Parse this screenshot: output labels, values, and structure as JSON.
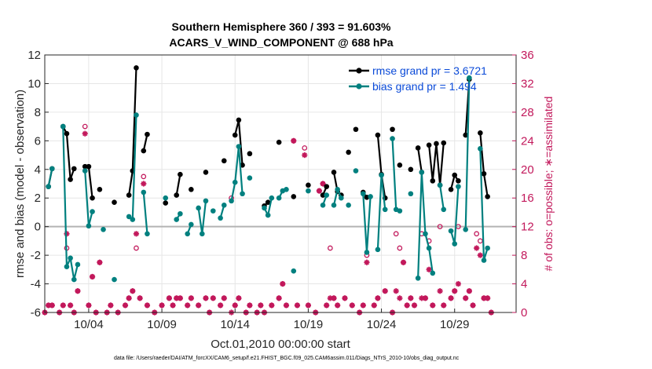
{
  "colors": {
    "rmse": "#000000",
    "bias": "#00807f",
    "obs": "#c2185b",
    "zero_line": "#b3b3b3"
  },
  "chart_data": {
    "type": "line",
    "title": [
      "Southern Hemisphere 360 / 393 = 91.603%",
      "ACARS_V_WIND_COMPONENT @ 688 hPa"
    ],
    "xlabel": "Oct.01,2010 00:00:00 start",
    "ylabel": "rmse and bias (model - observation)",
    "y2label": "# of obs: o=possible; ∗=assimilated",
    "xlim": [
      1,
      33.2
    ],
    "ylim": [
      -6,
      12
    ],
    "y2lim": [
      0,
      36
    ],
    "xticks": [
      {
        "value": 4,
        "label": "10/04"
      },
      {
        "value": 9,
        "label": "10/09"
      },
      {
        "value": 14,
        "label": "10/14"
      },
      {
        "value": 19,
        "label": "10/19"
      },
      {
        "value": 24,
        "label": "10/24"
      },
      {
        "value": 29,
        "label": "10/29"
      }
    ],
    "yticks": [
      -6,
      -4,
      -2,
      0,
      2,
      4,
      6,
      8,
      10,
      12
    ],
    "y2ticks": [
      0,
      4,
      8,
      12,
      16,
      20,
      24,
      28,
      32,
      36
    ],
    "grid": true,
    "legend_position": "top-right",
    "legend": [
      "rmse grand pr = 3.6721",
      "bias grand pr = 1.494"
    ],
    "footer": "data file: /Users/raeder/DAI/ATM_forcXX/CAM6_setup/f.e21.FHIST_BGC.f09_025.CAM6assim.011/Diags_NTrS_2010-10/obs_diag_output.nc",
    "series": [
      {
        "name": "rmse grand pr = 3.6721",
        "points": [
          [
            1.25,
            2.8
          ],
          [
            1.5,
            4.05
          ],
          [
            2.25,
            7.0
          ],
          [
            2.5,
            6.5
          ],
          [
            2.75,
            3.3
          ],
          [
            3.0,
            4.05
          ],
          [
            3.75,
            4.2
          ],
          [
            4.0,
            4.2
          ],
          [
            4.25,
            2.0
          ],
          [
            4.75,
            2.6
          ],
          [
            5.75,
            1.7
          ],
          [
            6.75,
            2.2
          ],
          [
            7.0,
            3.9
          ],
          [
            7.25,
            11.1
          ],
          [
            7.75,
            5.3
          ],
          [
            8.0,
            6.45
          ],
          [
            9.25,
            1.65
          ],
          [
            10.0,
            2.2
          ],
          [
            10.25,
            3.65
          ],
          [
            11.0,
            2.6
          ],
          [
            12.0,
            3.8
          ],
          [
            13.25,
            4.6
          ],
          [
            14.0,
            6.4
          ],
          [
            14.25,
            7.45
          ],
          [
            14.5,
            4.3
          ],
          [
            15.0,
            5.1
          ],
          [
            16.0,
            1.45
          ],
          [
            16.25,
            1.7
          ],
          [
            17.0,
            5.9
          ],
          [
            18.0,
            2.1
          ],
          [
            19.0,
            2.9
          ],
          [
            20.0,
            2.2
          ],
          [
            20.25,
            2.8
          ],
          [
            20.75,
            3.8
          ],
          [
            21.0,
            2.45
          ],
          [
            21.25,
            2.2
          ],
          [
            21.75,
            5.2
          ],
          [
            22.25,
            6.8
          ],
          [
            22.75,
            2.4
          ],
          [
            23.0,
            2.05
          ],
          [
            23.75,
            6.4
          ],
          [
            24.0,
            3.65
          ],
          [
            24.25,
            2.0
          ],
          [
            24.75,
            6.8
          ],
          [
            25.25,
            4.3
          ],
          [
            26.0,
            4.0
          ],
          [
            26.5,
            5.5
          ],
          [
            26.75,
            3.8
          ],
          [
            27.25,
            5.7
          ],
          [
            27.5,
            3.2
          ],
          [
            27.75,
            5.8
          ],
          [
            28.0,
            2.9
          ],
          [
            28.25,
            5.85
          ],
          [
            28.75,
            2.6
          ],
          [
            29.0,
            3.6
          ],
          [
            29.25,
            3.2
          ],
          [
            29.75,
            6.4
          ],
          [
            30.0,
            10.3
          ],
          [
            30.75,
            6.55
          ],
          [
            31.0,
            3.7
          ],
          [
            31.25,
            2.1
          ]
        ]
      },
      {
        "name": "bias grand pr = 1.494",
        "points": [
          [
            1.25,
            2.8
          ],
          [
            1.5,
            4.05
          ],
          [
            2.25,
            7.0
          ],
          [
            2.5,
            -2.8
          ],
          [
            2.75,
            -2.2
          ],
          [
            3.0,
            -3.7
          ],
          [
            3.25,
            -2.65
          ],
          [
            3.75,
            3.9
          ],
          [
            4.0,
            0.05
          ],
          [
            4.25,
            1.05
          ],
          [
            5.0,
            -0.2
          ],
          [
            5.75,
            -3.7
          ],
          [
            6.75,
            0.7
          ],
          [
            7.0,
            0.5
          ],
          [
            7.25,
            7.8
          ],
          [
            7.75,
            2.4
          ],
          [
            8.0,
            -0.5
          ],
          [
            9.25,
            2.0
          ],
          [
            10.0,
            0.5
          ],
          [
            10.25,
            0.9
          ],
          [
            10.75,
            -0.5
          ],
          [
            11.0,
            0.15
          ],
          [
            11.5,
            1.3
          ],
          [
            11.75,
            -0.5
          ],
          [
            12.0,
            1.8
          ],
          [
            12.5,
            1.1
          ],
          [
            13.0,
            0.6
          ],
          [
            13.25,
            1.5
          ],
          [
            13.75,
            1.8
          ],
          [
            14.0,
            3.1
          ],
          [
            14.25,
            5.6
          ],
          [
            14.5,
            2.3
          ],
          [
            15.0,
            3.4
          ],
          [
            16.0,
            1.3
          ],
          [
            16.25,
            0.8
          ],
          [
            16.5,
            2.0
          ],
          [
            17.0,
            2.0
          ],
          [
            17.25,
            2.5
          ],
          [
            17.5,
            2.6
          ],
          [
            18.0,
            -3.1
          ],
          [
            19.0,
            2.5
          ],
          [
            20.0,
            1.5
          ],
          [
            20.25,
            2.2
          ],
          [
            20.75,
            1.5
          ],
          [
            21.0,
            2.6
          ],
          [
            21.25,
            2.0
          ],
          [
            21.75,
            1.5
          ],
          [
            22.25,
            3.9
          ],
          [
            22.75,
            2.3
          ],
          [
            23.0,
            -1.8
          ],
          [
            23.25,
            2.1
          ],
          [
            23.75,
            -1.6
          ],
          [
            24.0,
            3.6
          ],
          [
            24.25,
            1.2
          ],
          [
            24.75,
            6.15
          ],
          [
            25.0,
            1.2
          ],
          [
            25.25,
            1.1
          ],
          [
            26.0,
            2.3
          ],
          [
            26.5,
            -3.6
          ],
          [
            26.75,
            3.8
          ],
          [
            27.0,
            -0.5
          ],
          [
            27.25,
            -1.5
          ],
          [
            27.5,
            -3.25
          ],
          [
            28.0,
            2.9
          ],
          [
            28.25,
            1.2
          ],
          [
            28.75,
            -0.3
          ],
          [
            29.0,
            -1.2
          ],
          [
            29.25,
            2.8
          ],
          [
            29.75,
            -0.2
          ],
          [
            30.0,
            10.4
          ],
          [
            30.75,
            5.45
          ],
          [
            31.0,
            -2.35
          ],
          [
            31.25,
            -1.5
          ]
        ]
      }
    ],
    "obs_possible": [
      [
        1,
        0
      ],
      [
        1.25,
        1
      ],
      [
        1.5,
        1
      ],
      [
        2,
        0
      ],
      [
        2.25,
        1
      ],
      [
        2.5,
        9
      ],
      [
        2.75,
        1
      ],
      [
        3,
        0
      ],
      [
        3.25,
        3
      ],
      [
        3.75,
        26
      ],
      [
        4,
        1
      ],
      [
        4.25,
        5
      ],
      [
        4.5,
        0
      ],
      [
        4.75,
        7
      ],
      [
        5.25,
        0
      ],
      [
        5.5,
        1
      ],
      [
        6,
        0
      ],
      [
        6.5,
        1
      ],
      [
        6.75,
        2
      ],
      [
        7,
        3
      ],
      [
        7.25,
        9
      ],
      [
        7.5,
        2
      ],
      [
        7.75,
        19
      ],
      [
        8,
        1
      ],
      [
        8.5,
        0
      ],
      [
        9,
        1
      ],
      [
        9.5,
        2
      ],
      [
        9.75,
        1
      ],
      [
        10,
        2
      ],
      [
        10.25,
        2
      ],
      [
        10.75,
        1
      ],
      [
        11,
        2
      ],
      [
        11.5,
        1
      ],
      [
        12,
        2
      ],
      [
        12.25,
        0
      ],
      [
        12.5,
        2
      ],
      [
        13,
        1
      ],
      [
        13.25,
        2
      ],
      [
        13.75,
        16
      ],
      [
        14,
        1
      ],
      [
        14.25,
        2
      ],
      [
        14.75,
        0
      ],
      [
        15,
        1
      ],
      [
        15.5,
        0
      ],
      [
        15.75,
        1
      ],
      [
        16,
        0
      ],
      [
        16.5,
        1
      ],
      [
        17,
        2
      ],
      [
        17.25,
        4
      ],
      [
        17.5,
        1
      ],
      [
        18,
        24
      ],
      [
        18.25,
        1
      ],
      [
        18.75,
        23
      ],
      [
        19,
        1
      ],
      [
        19.5,
        0
      ],
      [
        19.75,
        17
      ],
      [
        20,
        18
      ],
      [
        20.25,
        1
      ],
      [
        20.5,
        9
      ],
      [
        20.75,
        2
      ],
      [
        21,
        1
      ],
      [
        21.5,
        2
      ],
      [
        22,
        1
      ],
      [
        22.5,
        0
      ],
      [
        22.75,
        1
      ],
      [
        23,
        8
      ],
      [
        23.5,
        1
      ],
      [
        23.75,
        2
      ],
      [
        24.25,
        3
      ],
      [
        24.75,
        0
      ],
      [
        25,
        11
      ],
      [
        25.25,
        9
      ],
      [
        25.5,
        7
      ],
      [
        25.75,
        1
      ],
      [
        26,
        2
      ],
      [
        26.25,
        1
      ],
      [
        26.75,
        11
      ],
      [
        27,
        2
      ],
      [
        27.25,
        10
      ],
      [
        27.5,
        1
      ],
      [
        28,
        12
      ],
      [
        28.25,
        1
      ],
      [
        28.75,
        2
      ],
      [
        29,
        3
      ],
      [
        29.25,
        12
      ],
      [
        29.75,
        2
      ],
      [
        30,
        3
      ],
      [
        30.25,
        1
      ],
      [
        30.5,
        11
      ],
      [
        30.75,
        10
      ],
      [
        31,
        2
      ],
      [
        31.25,
        2
      ],
      [
        31.5,
        0
      ]
    ],
    "obs_assimilated": [
      [
        1,
        0
      ],
      [
        1.25,
        1
      ],
      [
        1.5,
        1
      ],
      [
        2,
        0
      ],
      [
        2.25,
        1
      ],
      [
        2.5,
        11
      ],
      [
        2.75,
        1
      ],
      [
        3,
        0
      ],
      [
        3.25,
        3
      ],
      [
        3.75,
        25
      ],
      [
        4,
        1
      ],
      [
        4.25,
        5
      ],
      [
        4.5,
        0
      ],
      [
        4.75,
        7
      ],
      [
        5.25,
        0
      ],
      [
        5.5,
        1
      ],
      [
        6,
        0
      ],
      [
        6.5,
        1
      ],
      [
        6.75,
        2
      ],
      [
        7,
        3
      ],
      [
        7.25,
        11
      ],
      [
        7.5,
        2
      ],
      [
        7.75,
        18
      ],
      [
        8,
        1
      ],
      [
        8.5,
        0
      ],
      [
        9,
        1
      ],
      [
        9.5,
        2
      ],
      [
        9.75,
        1
      ],
      [
        10,
        2
      ],
      [
        10.25,
        2
      ],
      [
        10.75,
        1
      ],
      [
        11,
        2
      ],
      [
        11.5,
        1
      ],
      [
        12,
        2
      ],
      [
        12.25,
        0
      ],
      [
        12.5,
        2
      ],
      [
        13,
        1
      ],
      [
        13.25,
        2
      ],
      [
        13.75,
        0
      ],
      [
        14,
        1
      ],
      [
        14.25,
        2
      ],
      [
        14.75,
        0
      ],
      [
        15,
        1
      ],
      [
        15.5,
        0
      ],
      [
        15.75,
        1
      ],
      [
        16,
        0
      ],
      [
        16.5,
        1
      ],
      [
        17,
        2
      ],
      [
        17.25,
        4
      ],
      [
        17.5,
        1
      ],
      [
        18,
        24
      ],
      [
        18.25,
        1
      ],
      [
        18.75,
        22
      ],
      [
        19,
        1
      ],
      [
        19.5,
        0
      ],
      [
        19.75,
        17
      ],
      [
        20,
        18
      ],
      [
        20.25,
        1
      ],
      [
        20.5,
        2
      ],
      [
        20.75,
        2
      ],
      [
        21,
        1
      ],
      [
        21.5,
        2
      ],
      [
        22,
        1
      ],
      [
        22.5,
        0
      ],
      [
        22.75,
        1
      ],
      [
        23,
        7
      ],
      [
        23.5,
        1
      ],
      [
        23.75,
        2
      ],
      [
        24.25,
        3
      ],
      [
        24.75,
        0
      ],
      [
        25,
        3
      ],
      [
        25.25,
        2
      ],
      [
        25.5,
        7
      ],
      [
        25.75,
        1
      ],
      [
        26,
        2
      ],
      [
        26.25,
        1
      ],
      [
        26.75,
        2
      ],
      [
        27,
        2
      ],
      [
        27.25,
        6
      ],
      [
        27.5,
        1
      ],
      [
        28,
        3
      ],
      [
        28.25,
        1
      ],
      [
        28.75,
        2
      ],
      [
        29,
        3
      ],
      [
        29.25,
        4
      ],
      [
        29.75,
        2
      ],
      [
        30,
        3
      ],
      [
        30.25,
        1
      ],
      [
        30.5,
        9
      ],
      [
        30.75,
        8
      ],
      [
        31,
        2
      ],
      [
        31.25,
        2
      ],
      [
        31.5,
        0
      ]
    ]
  }
}
